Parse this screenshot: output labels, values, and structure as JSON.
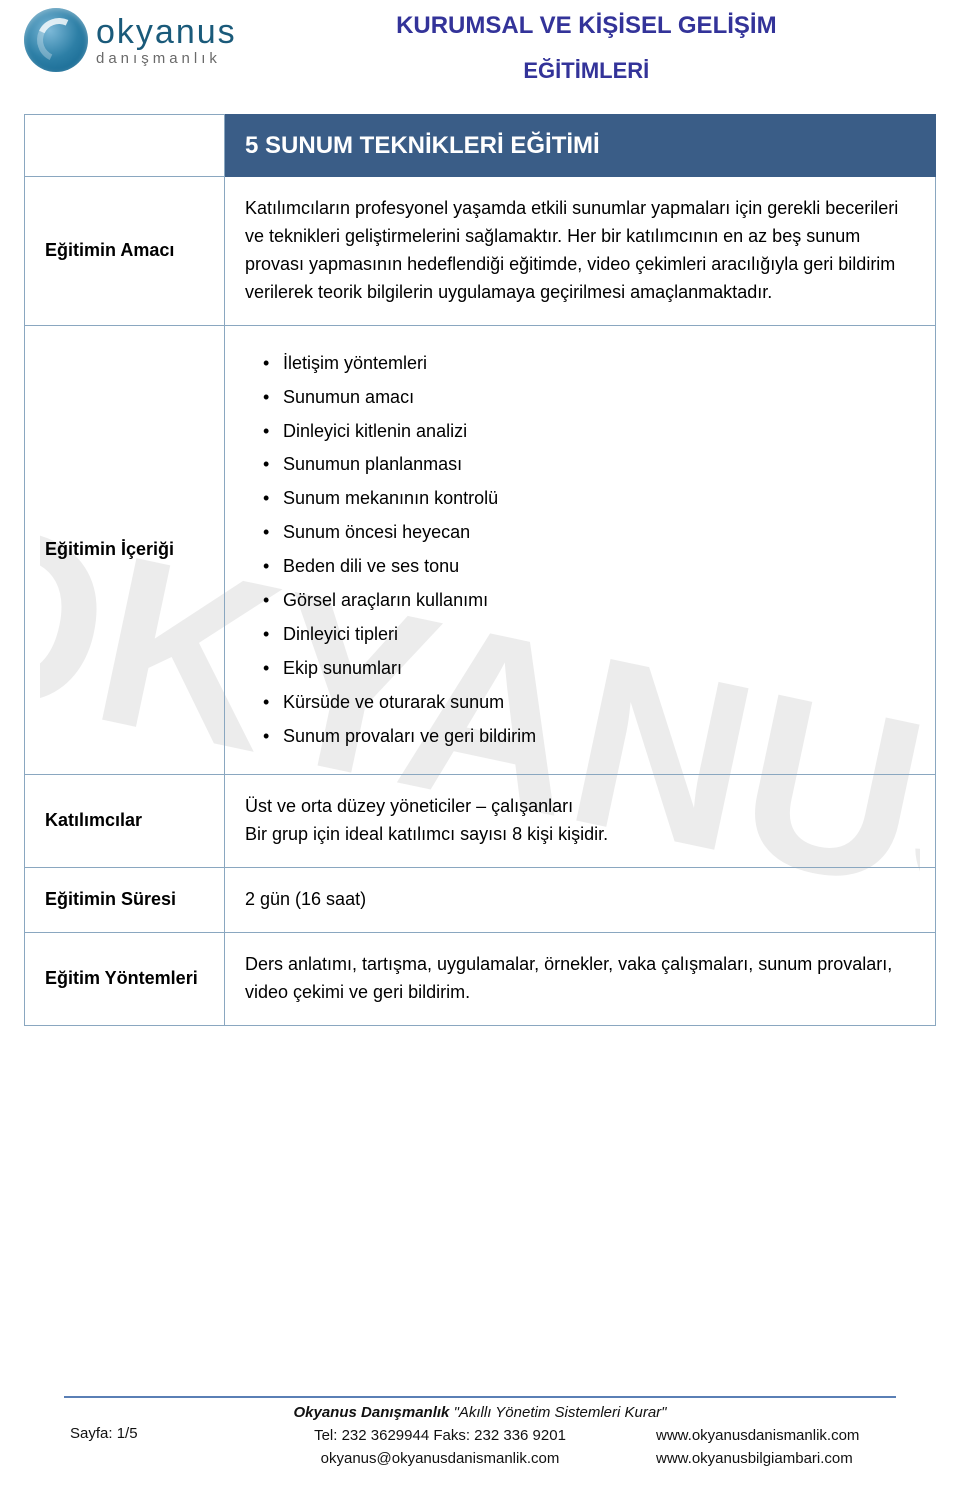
{
  "colors": {
    "header_text": "#333399",
    "table_border": "#8aa7c0",
    "title_row_bg": "#3a5d87",
    "title_row_text": "#ffffff",
    "footer_line": "#5a7fb5",
    "logo_primary": "#1a5a7a",
    "logo_secondary": "#6a6a6a"
  },
  "typography": {
    "body_font": "Arial",
    "body_size_pt": 13,
    "header_size_pt": 18,
    "title_row_size_pt": 18
  },
  "logo": {
    "brand": "okyanus",
    "tagline": "danışmanlık"
  },
  "header": {
    "line1": "KURUMSAL VE KİŞİSEL GELİŞİM",
    "line2": "EĞİTİMLERİ"
  },
  "course": {
    "title": "5  SUNUM TEKNİKLERİ EĞİTİMİ"
  },
  "rows": {
    "amac": {
      "label": "Eğitimin Amacı",
      "text": "Katılımcıların profesyonel yaşamda etkili sunumlar yapmaları için gerekli becerileri ve teknikleri geliştirmelerini sağlamaktır. Her bir katılımcının en az beş sunum provası yapmasının hedeflendiği eğitimde, video çekimleri aracılığıyla geri bildirim verilerek teorik bilgilerin uygulamaya geçirilmesi amaçlanmaktadır."
    },
    "icerik": {
      "label": "Eğitimin İçeriği",
      "items": [
        "İletişim yöntemleri",
        "Sunumun amacı",
        "Dinleyici kitlenin analizi",
        "Sunumun planlanması",
        "Sunum mekanının kontrolü",
        "Sunum öncesi heyecan",
        "Beden dili ve ses tonu",
        "Görsel araçların kullanımı",
        "Dinleyici tipleri",
        "Ekip sunumları",
        "Kürsüde ve oturarak sunum",
        "Sunum provaları ve geri bildirim"
      ]
    },
    "katilimcilar": {
      "label": "Katılımcılar",
      "line1": "Üst ve orta düzey yöneticiler – çalışanları",
      "line2": "Bir grup için ideal katılımcı sayısı 8 kişi kişidir."
    },
    "sure": {
      "label": "Eğitimin Süresi",
      "text": "2 gün (16 saat)"
    },
    "yontem": {
      "label": "Eğitim Yöntemleri",
      "text": "Ders anlatımı, tartışma, uygulamalar, örnekler, vaka çalışmaları, sunum provaları, video çekimi ve geri bildirim."
    }
  },
  "footer": {
    "tagline_brand": "Okyanus Danışmanlık",
    "tagline_rest": "   \"Akıllı Yönetim Sistemleri Kurar\"",
    "page": "Sayfa: 1/5",
    "tel": "Tel: 232 3629944  Faks: 232 336 9201",
    "email": "okyanus@okyanusdanismanlik.com",
    "url1": "www.okyanusdanismanlik.com",
    "url2": "www.okyanusbilgiambari.com"
  }
}
